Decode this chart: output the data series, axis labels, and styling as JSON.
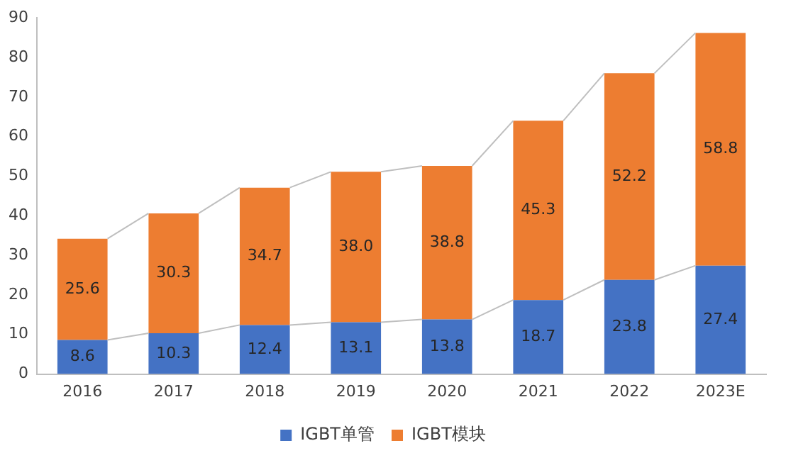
{
  "chart_data": {
    "type": "bar",
    "stacked": true,
    "categories": [
      "2016",
      "2017",
      "2018",
      "2019",
      "2020",
      "2021",
      "2022",
      "2023E"
    ],
    "series": [
      {
        "name": "IGBT单管",
        "color": "#4472c4",
        "values": [
          8.6,
          10.3,
          12.4,
          13.1,
          13.8,
          18.7,
          23.8,
          27.4
        ],
        "value_labels": [
          "8.6",
          "10.3",
          "12.4",
          "13.1",
          "13.8",
          "18.7",
          "23.8",
          "27.4"
        ]
      },
      {
        "name": "IGBT模块",
        "color": "#ed7d31",
        "values": [
          25.6,
          30.3,
          34.7,
          38.0,
          38.8,
          45.3,
          52.2,
          58.8
        ],
        "value_labels": [
          "25.6",
          "30.3",
          "34.7",
          "38.0",
          "38.8",
          "45.3",
          "52.2",
          "58.8"
        ]
      }
    ],
    "ylim": [
      0,
      90
    ],
    "yticks": [
      0,
      10,
      20,
      30,
      40,
      50,
      60,
      70,
      80,
      90
    ],
    "grid": false,
    "legend": "bottom"
  }
}
